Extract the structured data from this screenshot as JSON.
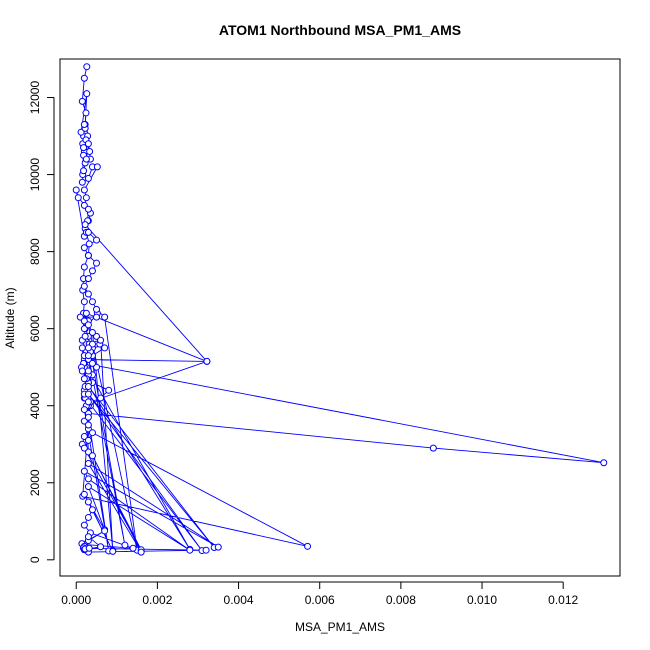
{
  "chart_data": {
    "type": "scatter",
    "title": "ATOM1 Northbound MSA_PM1_AMS",
    "xlabel": "MSA_PM1_AMS",
    "ylabel": "Altitude (m)",
    "xlim": [
      -0.0004,
      0.0134
    ],
    "ylim": [
      -420,
      13000
    ],
    "xticks": [
      0.0,
      0.002,
      0.004,
      0.006,
      0.008,
      0.01,
      0.012
    ],
    "xtick_labels": [
      "0.000",
      "0.002",
      "0.004",
      "0.006",
      "0.008",
      "0.010",
      "0.012"
    ],
    "yticks": [
      0,
      2000,
      4000,
      6000,
      8000,
      10000,
      12000
    ],
    "ytick_labels": [
      "0",
      "2000",
      "4000",
      "6000",
      "8000",
      "10000",
      "12000"
    ],
    "grid": false,
    "legend": "none",
    "line_color": "#0000ff",
    "marker": "open-circle",
    "series": [
      {
        "x": [
          0.00026,
          0.0002,
          0.00015,
          0.00024,
          0.00022,
          0.0002,
          0.00018,
          0.00016,
          0.00022,
          0.0002,
          0.00018,
          0.00026,
          0.00012,
          0.00028,
          0.00022,
          0.0002,
          0.00024,
          0.00018,
          0.00016,
          0.00022,
          0.00035,
          0.00033,
          0.0003,
          0.00025,
          0.00018,
          0.00015,
          0.0003,
          0.0004,
          0.00052,
          0.0002,
          0.00025,
          0.0002,
          0.00035,
          0.0003,
          0.00022,
          0.0002,
          0.0,
          5e-05,
          0.0003,
          0.00028,
          0.00025,
          0.00032,
          0.0003,
          0.0002,
          0.00018,
          0.00016,
          0.0002,
          0.00018,
          0.0003,
          0.00022,
          0.00052,
          0.0005,
          0.0001,
          0.00022,
          0.0003,
          0.00032,
          0.0004,
          0.0005,
          0.00025,
          0.00015,
          0.00058,
          0.0005,
          0.0007,
          0.0004,
          0.0003,
          0.00025,
          0.0002,
          0.0003,
          0.0004,
          0.0008,
          0.0006,
          0.00035,
          0.0003,
          0.0002,
          0.0003,
          0.0002,
          0.00015,
          0.0003,
          0.0002,
          0.00322,
          0.00025,
          0.0002,
          0.0002,
          0.00022,
          0.0004,
          0.00035,
          0.0003,
          0.0005,
          0.0004,
          0.0003,
          0.0003,
          0.0002,
          0.0003,
          0.0003,
          0.0088,
          0.013,
          0.0002,
          0.0002,
          0.0003,
          0.0003,
          0.0002,
          0.00022,
          0.00025,
          0.0003,
          0.00015,
          0.0002,
          0.00018,
          0.00013,
          0.00015,
          0.00025,
          0.00022,
          0.0002,
          0.00035,
          0.00322,
          0.00022,
          0.0003,
          0.0005,
          0.0002,
          0.0003,
          0.0005,
          0.0004,
          0.0003,
          0.0002,
          0.0003,
          0.0004,
          0.0005,
          0.0007,
          0.0015,
          0.0003,
          0.0004,
          0.0009,
          0.0006,
          0.0003,
          0.0003,
          0.0012,
          0.0004,
          0.0003,
          0.0028,
          0.0002,
          0.0003,
          0.0034,
          0.0003,
          0.0031,
          0.0003,
          0.0002,
          0.0008,
          0.0003,
          0.0003,
          0.00016,
          0.0057,
          0.0004,
          0.0003,
          0.0002,
          0.0016,
          0.0004,
          0.0016,
          0.0003,
          0.0035,
          0.0002,
          0.0003,
          0.0028,
          0.0003,
          0.0007,
          0.0002,
          0.0003,
          0.0009,
          0.0004,
          0.0003,
          0.0002,
          0.00035,
          0.0014,
          0.0002,
          0.0003,
          0.0007,
          0.00014,
          0.0002,
          0.00028,
          0.0003,
          0.0032,
          0.00018,
          0.0003,
          0.0006,
          0.0002,
          0.00018,
          0.0002,
          0.00022,
          0.00032
        ],
        "y": [
          12800,
          12500,
          11900,
          11600,
          11300,
          11100,
          11000,
          10800,
          10700,
          10600,
          10500,
          12100,
          11100,
          11000,
          11200,
          11300,
          10900,
          10700,
          10000,
          10300,
          10400,
          10600,
          10800,
          10400,
          10100,
          9800,
          9900,
          10200,
          10200,
          9600,
          9400,
          9200,
          9000,
          8800,
          8600,
          8400,
          9600,
          9400,
          9100,
          8800,
          8500,
          8200,
          7900,
          7600,
          7300,
          7000,
          6700,
          6400,
          6200,
          6000,
          6400,
          6300,
          6300,
          6000,
          5800,
          5600,
          5500,
          5600,
          5400,
          5700,
          5600,
          5800,
          5500,
          5300,
          5100,
          5000,
          4900,
          4800,
          4600,
          4400,
          4200,
          4000,
          3800,
          3600,
          3400,
          3200,
          3000,
          2800,
          5200,
          5150,
          6400,
          6200,
          6000,
          5800,
          5600,
          5400,
          5200,
          5000,
          4800,
          4600,
          4400,
          4200,
          4000,
          3800,
          2900,
          2520,
          5100,
          5000,
          4800,
          4600,
          4400,
          4200,
          4000,
          3800,
          5500,
          5300,
          5100,
          5000,
          4900,
          4700,
          4500,
          4300,
          4100,
          5150,
          8700,
          8500,
          8300,
          8100,
          7900,
          7700,
          7500,
          7300,
          7100,
          6900,
          6700,
          6500,
          6300,
          250,
          6100,
          5900,
          240,
          5700,
          5500,
          5300,
          380,
          5100,
          4900,
          270,
          4700,
          4500,
          320,
          4300,
          240,
          4100,
          3900,
          230,
          3700,
          3500,
          1650,
          350,
          3300,
          3100,
          2900,
          260,
          2700,
          200,
          2500,
          330,
          2300,
          2100,
          250,
          1900,
          780,
          1700,
          1500,
          220,
          1300,
          1100,
          900,
          700,
          300,
          400,
          500,
          750,
          420,
          350,
          280,
          200,
          250,
          300,
          600,
          340,
          260,
          310,
          270,
          280,
          300
        ]
      }
    ]
  }
}
